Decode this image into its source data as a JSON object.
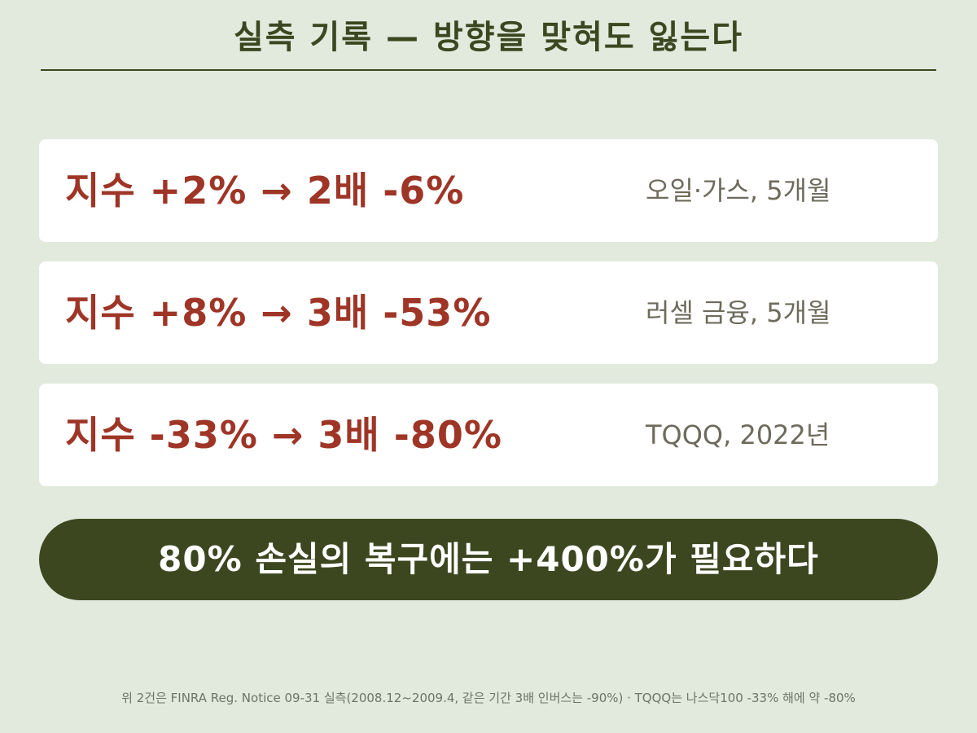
{
  "title": "실측 기록 — 방향을 맞혀도 잃는다",
  "records": [
    {
      "main": "지수 +2% → 2배 -6%",
      "note": "오일·가스, 5개월"
    },
    {
      "main": "지수 +8% → 3배 -53%",
      "note": "러셀 금융, 5개월"
    },
    {
      "main": "지수 -33% → 3배 -80%",
      "note": "TQQQ, 2022년"
    }
  ],
  "banner": "80% 손실의 복구에는 +400%가 필요하다",
  "footnote": "위 2건은 FINRA Reg. Notice 09-31 실측(2008.12~2009.4, 같은 기간 3배 인버스는 -90%) · TQQQ는 나스닥100 -33% 해에 약 -80%",
  "colors": {
    "background": "#e1eadd",
    "title": "#3b4720",
    "accent_red": "#9e3526",
    "banner_bg": "#3c4720"
  }
}
